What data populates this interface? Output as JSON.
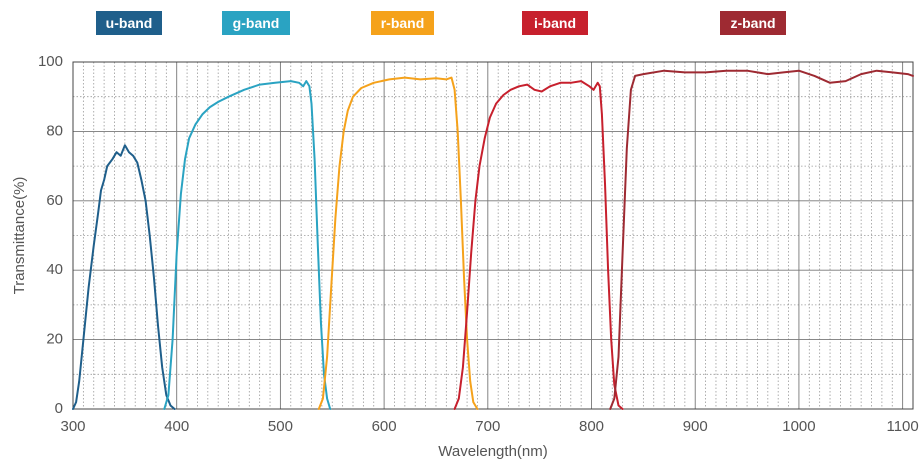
{
  "chart_data": {
    "type": "line",
    "xlabel": "Wavelength(nm)",
    "ylabel": "Transmittance(%)",
    "xlim": [
      300,
      1110
    ],
    "ylim": [
      0,
      100
    ],
    "x_ticks": [
      300,
      400,
      500,
      600,
      700,
      800,
      900,
      1000,
      1100
    ],
    "y_ticks": [
      0,
      20,
      40,
      60,
      80,
      100
    ],
    "grid": true,
    "legend_placement": "top",
    "series": [
      {
        "name": "u-band",
        "color": "#1f5f8b",
        "points": [
          [
            300,
            0
          ],
          [
            303,
            2
          ],
          [
            306,
            8
          ],
          [
            310,
            20
          ],
          [
            315,
            35
          ],
          [
            320,
            47
          ],
          [
            324,
            56
          ],
          [
            327,
            63
          ],
          [
            330,
            66
          ],
          [
            333,
            70
          ],
          [
            338,
            72
          ],
          [
            342,
            74
          ],
          [
            346,
            73
          ],
          [
            350,
            76
          ],
          [
            354,
            74
          ],
          [
            358,
            73
          ],
          [
            362,
            71
          ],
          [
            366,
            66
          ],
          [
            370,
            60
          ],
          [
            374,
            50
          ],
          [
            378,
            38
          ],
          [
            382,
            24
          ],
          [
            386,
            12
          ],
          [
            390,
            4
          ],
          [
            394,
            1
          ],
          [
            398,
            0
          ]
        ]
      },
      {
        "name": "g-band",
        "color": "#2aa3c2",
        "points": [
          [
            388,
            0
          ],
          [
            392,
            4
          ],
          [
            396,
            20
          ],
          [
            400,
            45
          ],
          [
            404,
            62
          ],
          [
            408,
            72
          ],
          [
            412,
            78
          ],
          [
            418,
            82
          ],
          [
            425,
            85
          ],
          [
            432,
            87
          ],
          [
            440,
            88.5
          ],
          [
            450,
            90
          ],
          [
            465,
            92
          ],
          [
            480,
            93.5
          ],
          [
            495,
            94
          ],
          [
            510,
            94.5
          ],
          [
            518,
            94
          ],
          [
            522,
            93
          ],
          [
            525,
            94.5
          ],
          [
            528,
            93
          ],
          [
            530,
            88
          ],
          [
            533,
            72
          ],
          [
            536,
            48
          ],
          [
            539,
            25
          ],
          [
            542,
            10
          ],
          [
            545,
            3
          ],
          [
            548,
            0
          ]
        ]
      },
      {
        "name": "r-band",
        "color": "#f5a21b",
        "points": [
          [
            537,
            0
          ],
          [
            541,
            3
          ],
          [
            545,
            15
          ],
          [
            549,
            35
          ],
          [
            553,
            55
          ],
          [
            557,
            70
          ],
          [
            561,
            80
          ],
          [
            565,
            86
          ],
          [
            570,
            90
          ],
          [
            578,
            92.5
          ],
          [
            590,
            94
          ],
          [
            605,
            95
          ],
          [
            620,
            95.5
          ],
          [
            635,
            95
          ],
          [
            650,
            95.3
          ],
          [
            660,
            95
          ],
          [
            665,
            95.5
          ],
          [
            668,
            92
          ],
          [
            671,
            80
          ],
          [
            674,
            60
          ],
          [
            677,
            38
          ],
          [
            680,
            20
          ],
          [
            683,
            8
          ],
          [
            686,
            2
          ],
          [
            690,
            0
          ]
        ]
      },
      {
        "name": "i-band",
        "color": "#c7202d",
        "points": [
          [
            668,
            0
          ],
          [
            672,
            3
          ],
          [
            676,
            12
          ],
          [
            680,
            28
          ],
          [
            684,
            45
          ],
          [
            688,
            60
          ],
          [
            692,
            70
          ],
          [
            697,
            78
          ],
          [
            702,
            84
          ],
          [
            708,
            88
          ],
          [
            715,
            90.5
          ],
          [
            722,
            92
          ],
          [
            730,
            93
          ],
          [
            738,
            93.5
          ],
          [
            745,
            92
          ],
          [
            752,
            91.5
          ],
          [
            760,
            93
          ],
          [
            770,
            94
          ],
          [
            780,
            94
          ],
          [
            790,
            94.5
          ],
          [
            798,
            93
          ],
          [
            802,
            92
          ],
          [
            806,
            94
          ],
          [
            808,
            93
          ],
          [
            810,
            85
          ],
          [
            813,
            65
          ],
          [
            816,
            40
          ],
          [
            819,
            20
          ],
          [
            822,
            7
          ],
          [
            826,
            1
          ],
          [
            830,
            0
          ]
        ]
      },
      {
        "name": "z-band",
        "color": "#9e2a32",
        "points": [
          [
            818,
            0
          ],
          [
            822,
            3
          ],
          [
            826,
            15
          ],
          [
            830,
            45
          ],
          [
            834,
            75
          ],
          [
            838,
            92
          ],
          [
            842,
            96
          ],
          [
            850,
            96.5
          ],
          [
            870,
            97.5
          ],
          [
            890,
            97
          ],
          [
            910,
            97
          ],
          [
            930,
            97.5
          ],
          [
            950,
            97.5
          ],
          [
            970,
            96.5
          ],
          [
            985,
            97
          ],
          [
            1000,
            97.5
          ],
          [
            1015,
            96
          ],
          [
            1030,
            94
          ],
          [
            1045,
            94.5
          ],
          [
            1060,
            96.5
          ],
          [
            1075,
            97.5
          ],
          [
            1090,
            97
          ],
          [
            1105,
            96.5
          ],
          [
            1110,
            96
          ]
        ]
      }
    ]
  }
}
